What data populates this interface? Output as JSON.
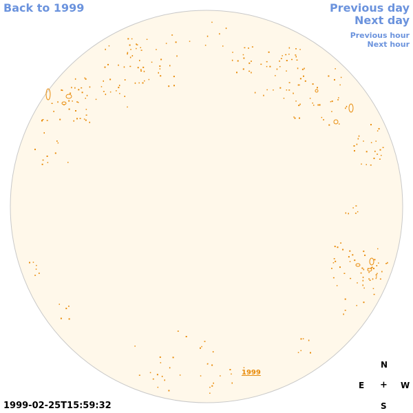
{
  "nav": {
    "back": "Back to 1999",
    "previous_day": "Previous day",
    "next_day": "Next day",
    "previous_hour": "Previous hour",
    "next_hour": "Next hour"
  },
  "disk": {
    "year_label": "1999",
    "fill_color": "#fff8ea",
    "outline_color": "#c8c8c8",
    "feature_color": "#e88b0a"
  },
  "compass": {
    "north": "N",
    "east": "E",
    "center": "+",
    "west": "W",
    "south": "S"
  },
  "timestamp": "1999-02-25T15:59:32"
}
